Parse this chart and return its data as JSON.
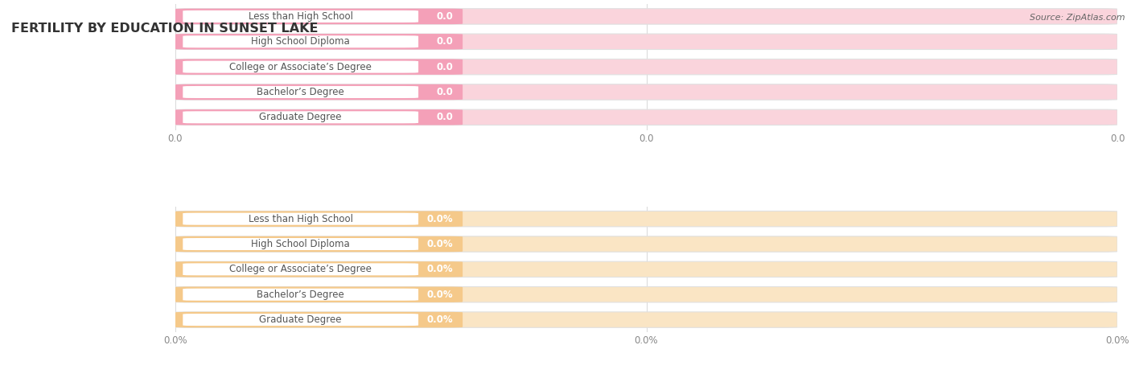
{
  "title": "FERTILITY BY EDUCATION IN SUNSET LAKE",
  "source_text": "Source: ZipAtlas.com",
  "group1_bar_color": "#F4A0B8",
  "group1_bg_color": "#FAD4DC",
  "group2_bar_color": "#F5C98A",
  "group2_bg_color": "#FAE5C4",
  "categories": [
    "Less than High School",
    "High School Diploma",
    "College or Associate’s Degree",
    "Bachelor’s Degree",
    "Graduate Degree"
  ],
  "group1_values": [
    0.0,
    0.0,
    0.0,
    0.0,
    0.0
  ],
  "group1_labels": [
    "0.0",
    "0.0",
    "0.0",
    "0.0",
    "0.0"
  ],
  "group2_values": [
    0.0,
    0.0,
    0.0,
    0.0,
    0.0
  ],
  "group2_labels": [
    "0.0%",
    "0.0%",
    "0.0%",
    "0.0%",
    "0.0%"
  ],
  "xtick_labels_g1": [
    "0.0",
    "0.0",
    "0.0"
  ],
  "xtick_labels_g2": [
    "0.0%",
    "0.0%",
    "0.0%"
  ],
  "title_fontsize": 11.5,
  "label_fontsize": 8.5,
  "tick_fontsize": 8.5,
  "source_fontsize": 8,
  "bar_height": 0.62,
  "background_color": "#FFFFFF",
  "bar_border_color": "#E0E0E0",
  "grid_color": "#D8D8D8",
  "text_color": "#555555",
  "tick_color": "#888888",
  "value_text_color": "#FFFFFF",
  "title_color": "#333333"
}
